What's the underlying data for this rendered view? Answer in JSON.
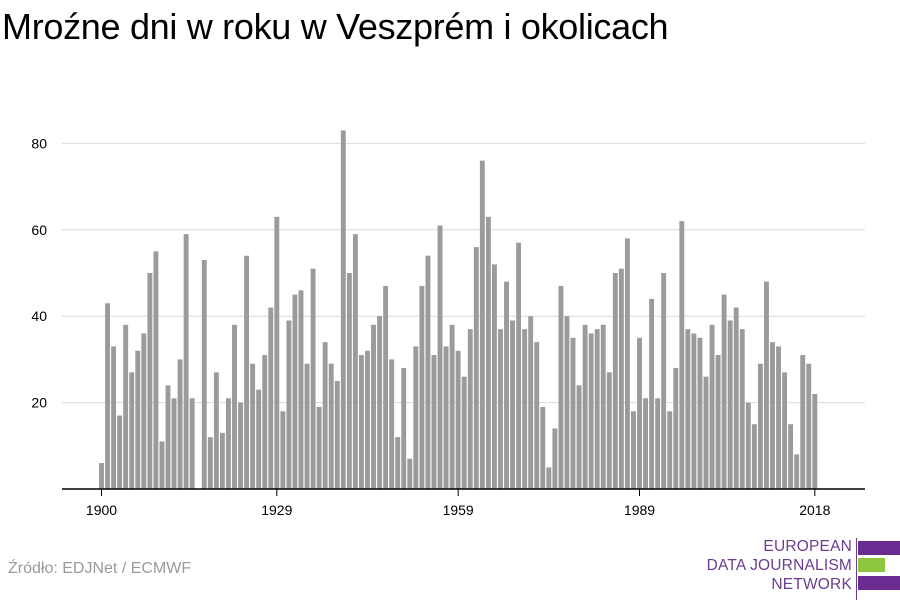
{
  "title": "Mroźne dni w roku w Veszprém i okolicach",
  "source": "Źródło: EDJNet / ECMWF",
  "logo": {
    "lines": [
      "EUROPEAN",
      "DATA JOURNALISM",
      "NETWORK"
    ],
    "colors": {
      "purple": "#6a2c91",
      "green": "#8dc63f"
    }
  },
  "colors": {
    "bar": "#9b9b9b",
    "grid": "#d9d9d9",
    "axis": "#000000"
  },
  "chart_data": {
    "type": "bar",
    "title": "Mroźne dni w roku w Veszprém i okolicach",
    "xlabel": "",
    "ylabel": "",
    "x_tick_labels": [
      "1900",
      "1929",
      "1959",
      "1989",
      "2018"
    ],
    "y_ticks": [
      20,
      40,
      60,
      80
    ],
    "ylim": [
      0,
      90
    ],
    "grid": true,
    "categories": [
      1900,
      1901,
      1902,
      1903,
      1904,
      1905,
      1906,
      1907,
      1908,
      1909,
      1910,
      1911,
      1912,
      1913,
      1914,
      1915,
      1916,
      1917,
      1918,
      1919,
      1920,
      1921,
      1922,
      1923,
      1924,
      1925,
      1926,
      1927,
      1928,
      1929,
      1930,
      1931,
      1932,
      1933,
      1934,
      1935,
      1936,
      1937,
      1938,
      1939,
      1940,
      1941,
      1942,
      1943,
      1944,
      1945,
      1946,
      1947,
      1948,
      1949,
      1950,
      1951,
      1952,
      1953,
      1954,
      1955,
      1956,
      1957,
      1958,
      1959,
      1960,
      1961,
      1962,
      1963,
      1964,
      1965,
      1966,
      1967,
      1968,
      1969,
      1970,
      1971,
      1972,
      1973,
      1974,
      1975,
      1976,
      1977,
      1978,
      1979,
      1980,
      1981,
      1982,
      1983,
      1984,
      1985,
      1986,
      1987,
      1988,
      1989,
      1990,
      1991,
      1992,
      1993,
      1994,
      1995,
      1996,
      1997,
      1998,
      1999,
      2000,
      2001,
      2002,
      2003,
      2004,
      2005,
      2006,
      2007,
      2008,
      2009,
      2010,
      2011,
      2012,
      2013,
      2014,
      2015,
      2016,
      2017,
      2018
    ],
    "values": [
      6,
      43,
      33,
      17,
      38,
      27,
      32,
      36,
      50,
      55,
      11,
      24,
      21,
      30,
      59,
      21,
      0,
      53,
      12,
      27,
      13,
      21,
      38,
      20,
      54,
      29,
      23,
      31,
      42,
      63,
      18,
      39,
      45,
      46,
      29,
      51,
      19,
      34,
      29,
      25,
      83,
      50,
      59,
      31,
      32,
      38,
      40,
      47,
      30,
      12,
      28,
      7,
      33,
      47,
      54,
      31,
      61,
      33,
      38,
      32,
      26,
      37,
      56,
      76,
      63,
      52,
      37,
      48,
      39,
      57,
      37,
      40,
      34,
      19,
      5,
      14,
      47,
      40,
      35,
      24,
      38,
      36,
      37,
      38,
      27,
      50,
      51,
      58,
      18,
      35,
      21,
      44,
      21,
      50,
      18,
      28,
      62,
      37,
      36,
      35,
      26,
      38,
      31,
      45,
      39,
      42,
      37,
      20,
      15,
      29,
      48,
      34,
      33,
      27,
      15,
      8,
      31,
      29,
      22
    ]
  }
}
